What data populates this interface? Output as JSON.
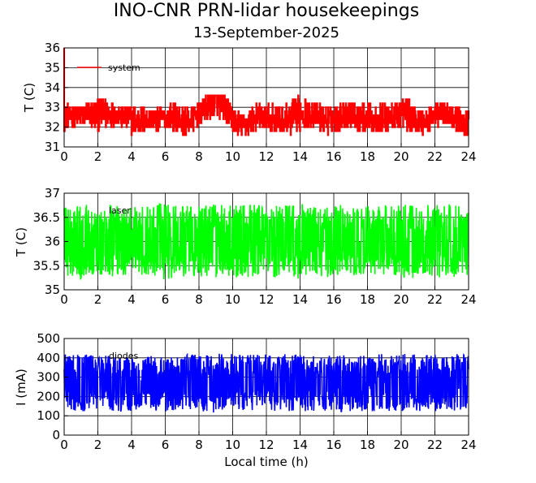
{
  "title": "INO-CNR PRN-lidar housekeepings",
  "subtitle": "13-September-2025",
  "chart_data": [
    {
      "type": "line",
      "ylabel": "T (C)",
      "xlabel": "",
      "xlim": [
        0,
        24
      ],
      "ylim": [
        31,
        36
      ],
      "xticks": [
        "0",
        "2",
        "4",
        "6",
        "8",
        "10",
        "12",
        "14",
        "16",
        "18",
        "20",
        "22",
        "24"
      ],
      "yticks": [
        "31",
        "32",
        "33",
        "34",
        "35",
        "36"
      ],
      "grid": true,
      "legend_position": "top-left",
      "series": [
        {
          "name": "system",
          "color": "#ff0000",
          "x": [
            0,
            0.5,
            1,
            1.5,
            2,
            2.5,
            3,
            3.5,
            4,
            4.5,
            5,
            5.5,
            6,
            6.5,
            7,
            7.5,
            8,
            8.5,
            9,
            9.5,
            10,
            10.5,
            11,
            11.5,
            12,
            12.5,
            13,
            13.5,
            14,
            14.5,
            15,
            15.5,
            16,
            16.5,
            17,
            17.5,
            18,
            18.5,
            19,
            19.5,
            20,
            20.5,
            21,
            21.5,
            22,
            22.5,
            23,
            23.5,
            24
          ],
          "low": [
            31.8,
            31.6,
            31.6,
            31.8,
            31.8,
            31.8,
            31.8,
            31.6,
            31.6,
            31.8,
            32.0,
            31.8,
            31.8,
            31.6,
            31.6,
            31.8,
            32.0,
            31.8,
            32.0,
            32.0,
            31.8,
            31.6,
            31.6,
            31.6,
            31.8,
            31.8,
            31.8,
            31.6,
            31.6,
            31.6,
            31.6,
            31.6,
            31.6,
            31.6,
            31.6,
            31.6,
            31.8,
            31.8,
            31.8,
            31.8,
            31.8,
            31.8,
            31.8,
            31.6,
            31.6,
            31.6,
            31.6,
            31.6,
            31.6
          ],
          "high": [
            33.2,
            33.0,
            33.0,
            33.2,
            33.6,
            33.6,
            33.0,
            33.0,
            33.2,
            33.6,
            33.6,
            33.2,
            33.0,
            33.2,
            33.2,
            33.2,
            33.2,
            33.6,
            33.6,
            33.6,
            33.2,
            33.0,
            33.0,
            33.2,
            33.2,
            33.6,
            33.6,
            33.6,
            33.6,
            33.2,
            33.2,
            33.2,
            33.2,
            33.2,
            33.2,
            33.2,
            33.6,
            33.6,
            33.6,
            33.2,
            33.6,
            33.6,
            33.2,
            33.2,
            33.2,
            33.2,
            33.0,
            33.0,
            33.0
          ]
        }
      ]
    },
    {
      "type": "line",
      "ylabel": "T (C)",
      "xlabel": "",
      "xlim": [
        0,
        24
      ],
      "ylim": [
        35,
        37
      ],
      "xticks": [
        "0",
        "2",
        "4",
        "6",
        "8",
        "10",
        "12",
        "14",
        "16",
        "18",
        "20",
        "22",
        "24"
      ],
      "yticks": [
        "35",
        "35.5",
        "36",
        "36.5",
        "37"
      ],
      "grid": true,
      "legend_position": "top-left",
      "series": [
        {
          "name": "laser",
          "color": "#00ff00",
          "x": [
            0,
            0.5,
            1,
            1.5,
            2,
            2.5,
            3,
            3.5,
            4,
            4.5,
            5,
            5.5,
            6,
            6.5,
            7,
            7.5,
            8,
            8.5,
            9,
            9.5,
            10,
            10.5,
            11,
            11.5,
            12,
            12.5,
            13,
            13.5,
            14,
            14.5,
            15,
            15.5,
            16,
            16.5,
            17,
            17.5,
            18,
            18.5,
            19,
            19.5,
            20,
            20.5,
            21,
            21.5,
            22,
            22.5,
            23,
            23.5,
            24
          ],
          "low": [
            35.3,
            35.25,
            35.2,
            35.3,
            35.3,
            35.25,
            35.25,
            35.3,
            35.3,
            35.3,
            35.25,
            35.25,
            35.2,
            35.25,
            35.25,
            35.3,
            35.25,
            35.25,
            35.25,
            35.3,
            35.25,
            35.25,
            35.25,
            35.25,
            35.3,
            35.25,
            35.3,
            35.3,
            35.2,
            35.3,
            35.3,
            35.25,
            35.25,
            35.3,
            35.3,
            35.3,
            35.3,
            35.3,
            35.3,
            35.3,
            35.25,
            35.2,
            35.3,
            35.3,
            35.25,
            35.25,
            35.25,
            35.3,
            35.3
          ],
          "high": [
            36.75,
            36.8,
            36.8,
            36.75,
            36.7,
            36.75,
            36.8,
            36.75,
            36.75,
            36.7,
            36.75,
            36.8,
            36.8,
            36.8,
            36.8,
            36.75,
            36.75,
            36.8,
            36.8,
            36.75,
            36.75,
            36.8,
            36.8,
            36.75,
            36.8,
            36.75,
            36.75,
            36.75,
            36.8,
            36.75,
            36.75,
            36.8,
            36.8,
            36.75,
            36.75,
            36.75,
            36.75,
            36.75,
            36.75,
            36.75,
            36.8,
            36.8,
            36.75,
            36.75,
            36.8,
            36.75,
            36.8,
            36.75,
            36.75
          ]
        }
      ]
    },
    {
      "type": "line",
      "ylabel": "I (mA)",
      "xlabel": "Local time (h)",
      "xlim": [
        0,
        24
      ],
      "ylim": [
        0,
        500
      ],
      "xticks": [
        "0",
        "2",
        "4",
        "6",
        "8",
        "10",
        "12",
        "14",
        "16",
        "18",
        "20",
        "22",
        "24"
      ],
      "yticks": [
        "0",
        "100",
        "200",
        "300",
        "400",
        "500"
      ],
      "grid": true,
      "legend_position": "top-left",
      "series": [
        {
          "name": "diodes",
          "color": "#0000ff",
          "x": [
            0,
            0.5,
            1,
            1.5,
            2,
            2.5,
            3,
            3.5,
            4,
            4.5,
            5,
            5.5,
            6,
            6.5,
            7,
            7.5,
            8,
            8.5,
            9,
            9.5,
            10,
            10.5,
            11,
            11.5,
            12,
            12.5,
            13,
            13.5,
            14,
            14.5,
            15,
            15.5,
            16,
            16.5,
            17,
            17.5,
            18,
            18.5,
            19,
            19.5,
            20,
            20.5,
            21,
            21.5,
            22,
            22.5,
            23,
            23.5,
            24
          ],
          "low": [
            130,
            125,
            120,
            125,
            130,
            130,
            125,
            120,
            125,
            130,
            125,
            125,
            120,
            125,
            130,
            125,
            125,
            120,
            110,
            115,
            120,
            125,
            125,
            125,
            120,
            125,
            125,
            120,
            115,
            120,
            125,
            120,
            125,
            120,
            120,
            125,
            120,
            125,
            125,
            120,
            125,
            120,
            125,
            125,
            120,
            125,
            125,
            130,
            130
          ],
          "high": [
            430,
            420,
            415,
            415,
            410,
            415,
            420,
            420,
            410,
            415,
            420,
            420,
            415,
            415,
            410,
            420,
            415,
            415,
            420,
            425,
            420,
            420,
            415,
            420,
            425,
            420,
            420,
            415,
            420,
            415,
            420,
            420,
            415,
            415,
            420,
            420,
            415,
            420,
            420,
            415,
            420,
            420,
            415,
            420,
            420,
            415,
            420,
            420,
            420
          ]
        }
      ]
    }
  ]
}
